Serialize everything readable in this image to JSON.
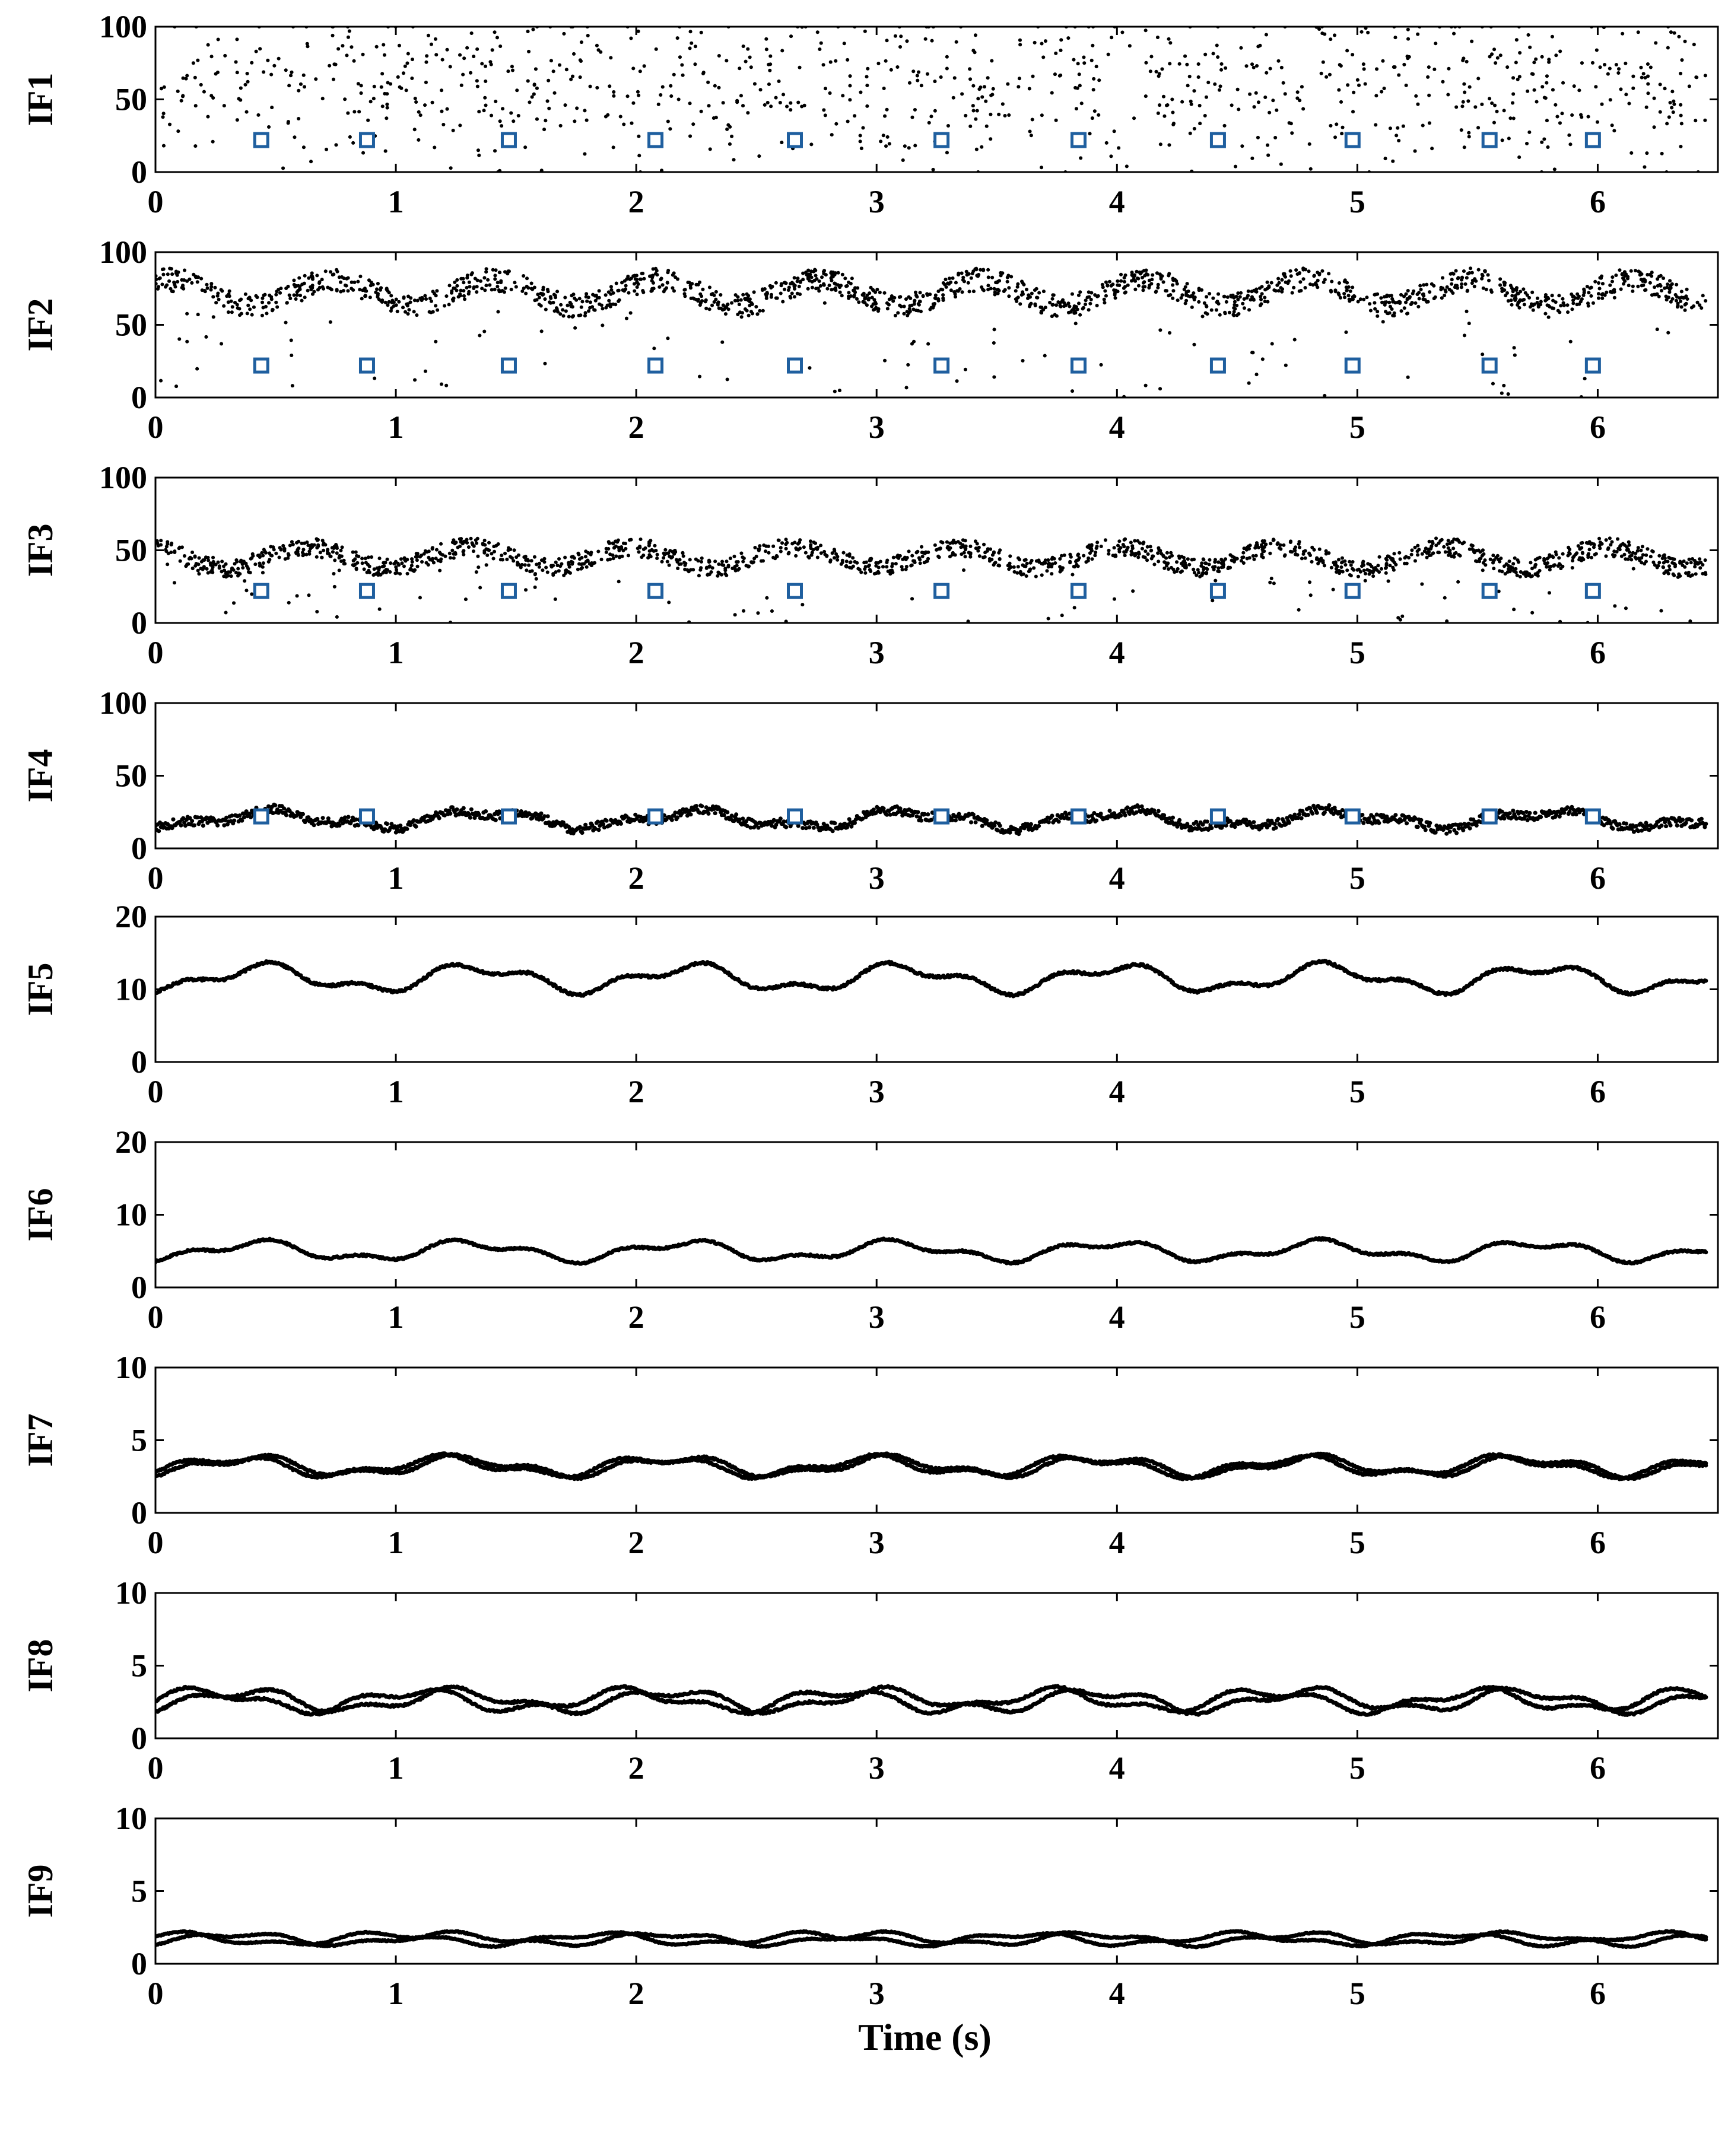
{
  "chart_data": [
    {
      "type": "scatter",
      "ylabel": "IF1",
      "xlim": [
        0,
        6.5
      ],
      "ylim": [
        0,
        100
      ],
      "xticks": [
        "0",
        "1",
        "2",
        "3",
        "4",
        "5",
        "6"
      ],
      "yticks": [
        "0",
        "50",
        "100"
      ],
      "style": "sparse",
      "center": 60,
      "spread": 40,
      "markers": [
        0.44,
        0.88,
        1.47,
        2.08,
        2.66,
        3.27,
        3.84,
        4.42,
        4.98,
        5.55,
        5.98
      ],
      "marker_y": 22
    },
    {
      "type": "scatter",
      "ylabel": "IF2",
      "xlim": [
        0,
        6.5
      ],
      "ylim": [
        0,
        100
      ],
      "xticks": [
        "0",
        "1",
        "2",
        "3",
        "4",
        "5",
        "6"
      ],
      "yticks": [
        "0",
        "50",
        "100"
      ],
      "style": "dense",
      "center": 72,
      "spread": 10,
      "markers": [
        0.44,
        0.88,
        1.47,
        2.08,
        2.66,
        3.27,
        3.84,
        4.42,
        4.98,
        5.55,
        5.98
      ],
      "marker_y": 22
    },
    {
      "type": "scatter",
      "ylabel": "IF3",
      "xlim": [
        0,
        6.5
      ],
      "ylim": [
        0,
        100
      ],
      "xticks": [
        "0",
        "1",
        "2",
        "3",
        "4",
        "5",
        "6"
      ],
      "yticks": [
        "0",
        "50",
        "100"
      ],
      "style": "dense",
      "center": 45,
      "spread": 8,
      "markers": [
        0.44,
        0.88,
        1.47,
        2.08,
        2.66,
        3.27,
        3.84,
        4.42,
        4.98,
        5.55,
        5.98
      ],
      "marker_y": 22
    },
    {
      "type": "scatter",
      "ylabel": "IF4",
      "xlim": [
        0,
        6.5
      ],
      "ylim": [
        0,
        100
      ],
      "xticks": [
        "0",
        "1",
        "2",
        "3",
        "4",
        "5",
        "6"
      ],
      "yticks": [
        "0",
        "50",
        "100"
      ],
      "style": "line",
      "center": 20,
      "spread": 7,
      "markers": [
        0.44,
        0.88,
        1.47,
        2.08,
        2.66,
        3.27,
        3.84,
        4.42,
        4.98,
        5.55,
        5.98
      ],
      "marker_y": 22
    },
    {
      "type": "line",
      "ylabel": "IF5",
      "xlim": [
        0,
        6.5
      ],
      "ylim": [
        0,
        20
      ],
      "xticks": [
        "0",
        "1",
        "2",
        "3",
        "4",
        "5",
        "6"
      ],
      "yticks": [
        "0",
        "10",
        "20"
      ],
      "style": "line",
      "center": 11.5,
      "spread": 2.2,
      "markers": [],
      "marker_y": 0
    },
    {
      "type": "line",
      "ylabel": "IF6",
      "xlim": [
        0,
        6.5
      ],
      "ylim": [
        0,
        20
      ],
      "xticks": [
        "0",
        "1",
        "2",
        "3",
        "4",
        "5",
        "6"
      ],
      "yticks": [
        "0",
        "10",
        "20"
      ],
      "style": "line",
      "center": 5,
      "spread": 1.6,
      "markers": [],
      "marker_y": 0
    },
    {
      "type": "line",
      "ylabel": "IF7",
      "xlim": [
        0,
        6.5
      ],
      "ylim": [
        0,
        10
      ],
      "xticks": [
        "0",
        "1",
        "2",
        "3",
        "4",
        "5",
        "6"
      ],
      "yticks": [
        "0",
        "5",
        "10"
      ],
      "style": "twoline",
      "center": 3.2,
      "spread": 0.8,
      "markers": [],
      "marker_y": 0
    },
    {
      "type": "line",
      "ylabel": "IF8",
      "xlim": [
        0,
        6.5
      ],
      "ylim": [
        0,
        10
      ],
      "xticks": [
        "0",
        "1",
        "2",
        "3",
        "4",
        "5",
        "6"
      ],
      "yticks": [
        "0",
        "5",
        "10"
      ],
      "style": "twoline",
      "center": 2.6,
      "spread": 0.9,
      "markers": [],
      "marker_y": 0
    },
    {
      "type": "line",
      "ylabel": "IF9",
      "xlim": [
        0,
        6.5
      ],
      "ylim": [
        0,
        10
      ],
      "xticks": [
        "0",
        "1",
        "2",
        "3",
        "4",
        "5",
        "6"
      ],
      "yticks": [
        "0",
        "5",
        "10"
      ],
      "xlabel": "Time (s)",
      "style": "twoline",
      "center": 1.7,
      "spread": 0.5,
      "markers": [],
      "marker_y": 0
    }
  ],
  "colors": {
    "points": "#000000",
    "markers": "#1f5f9f",
    "axes": "#000000"
  }
}
